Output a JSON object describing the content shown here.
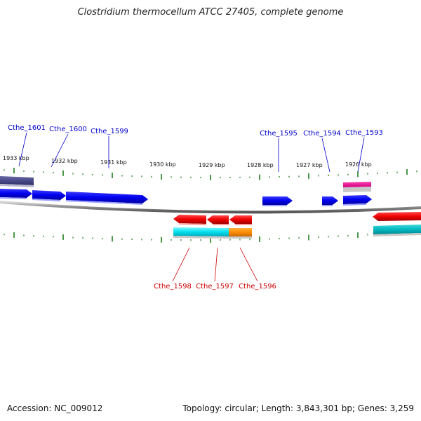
{
  "title": "Clostridium thermocellum ATCC 27405, complete genome",
  "footer": {
    "accession": "Accession: NC_009012",
    "summary": "Topology: circular; Length: 3,843,301 bp; Genes: 3,259"
  },
  "colors": {
    "forward_label": "#0000cc",
    "reverse_label": "#cc0000",
    "tick": "#117711",
    "backbone": "#888888"
  },
  "ruler": {
    "ticks": [
      {
        "label": "1933 kbp"
      },
      {
        "label": "1932 kbp"
      },
      {
        "label": "1931 kbp"
      },
      {
        "label": "1930 kbp"
      },
      {
        "label": "1929 kbp"
      },
      {
        "label": "1928 kbp"
      },
      {
        "label": "1927 kbp"
      },
      {
        "label": "1926 kbp"
      }
    ]
  },
  "genes_forward": [
    {
      "label": "Cthe_1601"
    },
    {
      "label": "Cthe_1600"
    },
    {
      "label": "Cthe_1599"
    },
    {
      "label": "Cthe_1595"
    },
    {
      "label": "Cthe_1594"
    },
    {
      "label": "Cthe_1593"
    }
  ],
  "genes_reverse": [
    {
      "label": "Cthe_1598"
    },
    {
      "label": "Cthe_1597"
    },
    {
      "label": "Cthe_1596"
    }
  ]
}
